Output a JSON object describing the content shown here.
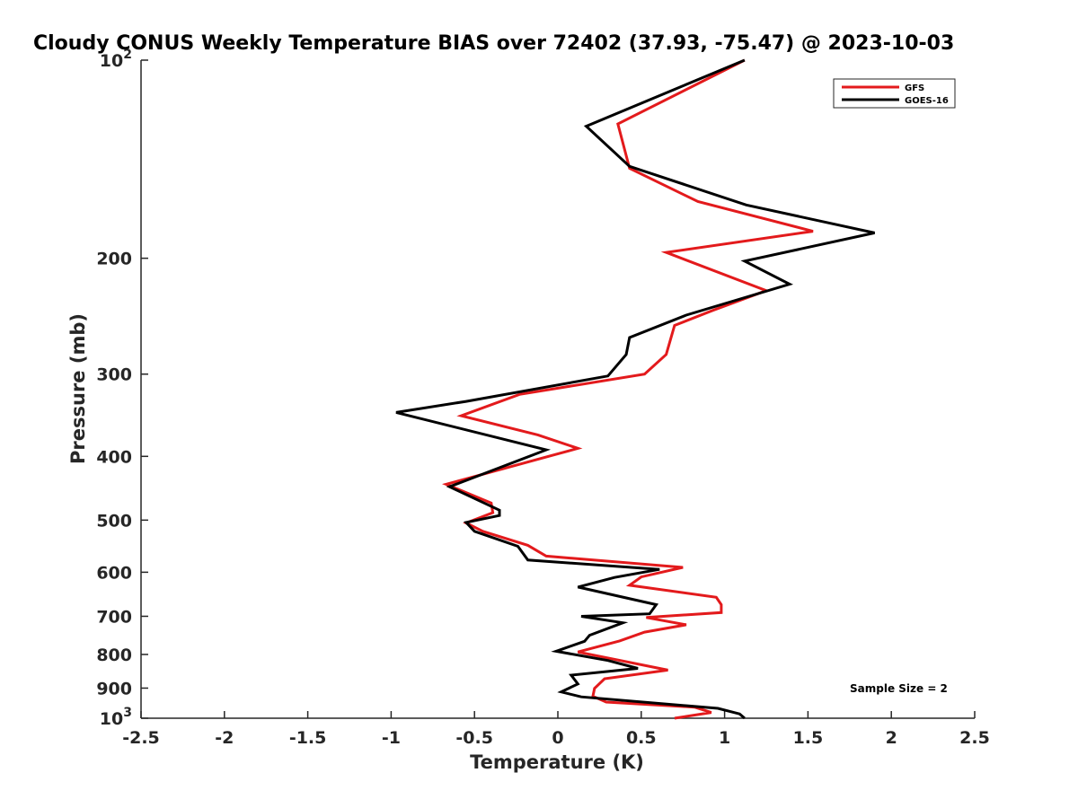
{
  "chart_data": {
    "type": "line",
    "title": "Cloudy CONUS Weekly Temperature BIAS over 72402 (37.93, -75.47) @ 2023-10-03",
    "xlabel": "Temperature (K)",
    "ylabel": "Pressure (mb)",
    "xlim": [
      -2.5,
      2.5
    ],
    "ylim": [
      100,
      1000
    ],
    "yscale": "log",
    "y_reversed": true,
    "grid": false,
    "legend_position": "top-right",
    "xticks": [
      "-2.5",
      "-2",
      "-1.5",
      "-1",
      "-0.5",
      "0",
      "0.5",
      "1",
      "1.5",
      "2",
      "2.5"
    ],
    "xtick_values": [
      -2.5,
      -2,
      -1.5,
      -1,
      -0.5,
      0,
      0.5,
      1,
      1.5,
      2,
      2.5
    ],
    "yticks": [
      {
        "value": 100,
        "base": "10",
        "exp": "2"
      },
      {
        "value": 200,
        "base": "200",
        "exp": ""
      },
      {
        "value": 300,
        "base": "300",
        "exp": ""
      },
      {
        "value": 400,
        "base": "400",
        "exp": ""
      },
      {
        "value": 500,
        "base": "500",
        "exp": ""
      },
      {
        "value": 600,
        "base": "600",
        "exp": ""
      },
      {
        "value": 700,
        "base": "700",
        "exp": ""
      },
      {
        "value": 800,
        "base": "800",
        "exp": ""
      },
      {
        "value": 900,
        "base": "900",
        "exp": ""
      },
      {
        "value": 1000,
        "base": "10",
        "exp": "3"
      }
    ],
    "annotation": "Sample Size = 2",
    "series": [
      {
        "name": "GFS",
        "color": "#e31a1c",
        "points": [
          [
            1.12,
            100
          ],
          [
            0.36,
            125
          ],
          [
            0.43,
            146
          ],
          [
            0.84,
            164
          ],
          [
            1.53,
            182
          ],
          [
            0.65,
            196
          ],
          [
            1.25,
            224
          ],
          [
            0.93,
            240
          ],
          [
            0.7,
            253
          ],
          [
            0.65,
            280
          ],
          [
            0.52,
            300
          ],
          [
            -0.23,
            322
          ],
          [
            -0.58,
            347
          ],
          [
            -0.12,
            371
          ],
          [
            0.12,
            389
          ],
          [
            -0.67,
            441
          ],
          [
            -0.4,
            471
          ],
          [
            -0.39,
            487
          ],
          [
            -0.55,
            505
          ],
          [
            -0.45,
            520
          ],
          [
            -0.18,
            546
          ],
          [
            -0.07,
            567
          ],
          [
            0.75,
            590
          ],
          [
            0.5,
            610
          ],
          [
            0.43,
            628
          ],
          [
            0.95,
            655
          ],
          [
            0.98,
            672
          ],
          [
            0.98,
            691
          ],
          [
            0.53,
            703
          ],
          [
            0.77,
            721
          ],
          [
            0.52,
            740
          ],
          [
            0.37,
            763
          ],
          [
            0.12,
            793
          ],
          [
            0.66,
            845
          ],
          [
            0.28,
            871
          ],
          [
            0.22,
            901
          ],
          [
            0.21,
            926
          ],
          [
            0.29,
            945
          ],
          [
            0.82,
            962
          ],
          [
            0.92,
            980
          ],
          [
            0.7,
            1000
          ]
        ]
      },
      {
        "name": "GOES-16",
        "color": "#000000",
        "points": [
          [
            1.12,
            100
          ],
          [
            0.17,
            126
          ],
          [
            0.43,
            145
          ],
          [
            1.13,
            166
          ],
          [
            1.9,
            183
          ],
          [
            1.12,
            202
          ],
          [
            1.39,
            219
          ],
          [
            0.77,
            244
          ],
          [
            0.43,
            264
          ],
          [
            0.41,
            280
          ],
          [
            0.3,
            302
          ],
          [
            -0.55,
            330
          ],
          [
            -0.97,
            343
          ],
          [
            -0.07,
            391
          ],
          [
            -0.65,
            445
          ],
          [
            -0.35,
            483
          ],
          [
            -0.35,
            492
          ],
          [
            -0.55,
            504
          ],
          [
            -0.5,
            520
          ],
          [
            -0.24,
            548
          ],
          [
            -0.18,
            575
          ],
          [
            0.61,
            594
          ],
          [
            0.34,
            611
          ],
          [
            0.12,
            632
          ],
          [
            0.59,
            672
          ],
          [
            0.55,
            694
          ],
          [
            0.14,
            700
          ],
          [
            0.39,
            716
          ],
          [
            0.19,
            748
          ],
          [
            0.16,
            764
          ],
          [
            -0.01,
            791
          ],
          [
            0.3,
            817
          ],
          [
            0.48,
            840
          ],
          [
            0.08,
            860
          ],
          [
            0.12,
            887
          ],
          [
            0.02,
            912
          ],
          [
            0.14,
            928
          ],
          [
            0.96,
            966
          ],
          [
            1.09,
            985
          ],
          [
            1.12,
            1000
          ]
        ]
      }
    ]
  }
}
